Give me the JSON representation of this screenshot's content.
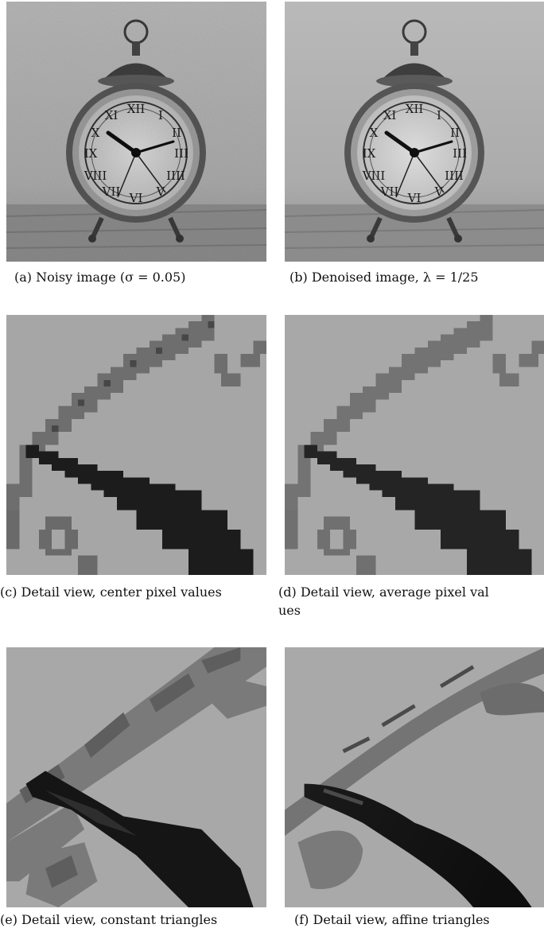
{
  "figure": {
    "panels": [
      {
        "id": "a",
        "caption": "(a) Noisy image (σ = 0.05)"
      },
      {
        "id": "b",
        "caption": "(b) Denoised image, λ = 1/25"
      },
      {
        "id": "c",
        "caption": "(c) Detail view, center pixel values"
      },
      {
        "id": "d",
        "caption_line1": "(d) Detail view, average pixel val",
        "caption_line2": "ues"
      },
      {
        "id": "e",
        "caption": "(e) Detail view, constant triangles"
      },
      {
        "id": "f",
        "caption": "(f) Detail view, affine triangles"
      }
    ],
    "clock_numerals": [
      "XII",
      "I",
      "II",
      "III",
      "IIII",
      "V",
      "VI",
      "VII",
      "VIII",
      "IX",
      "X",
      "XI"
    ]
  }
}
